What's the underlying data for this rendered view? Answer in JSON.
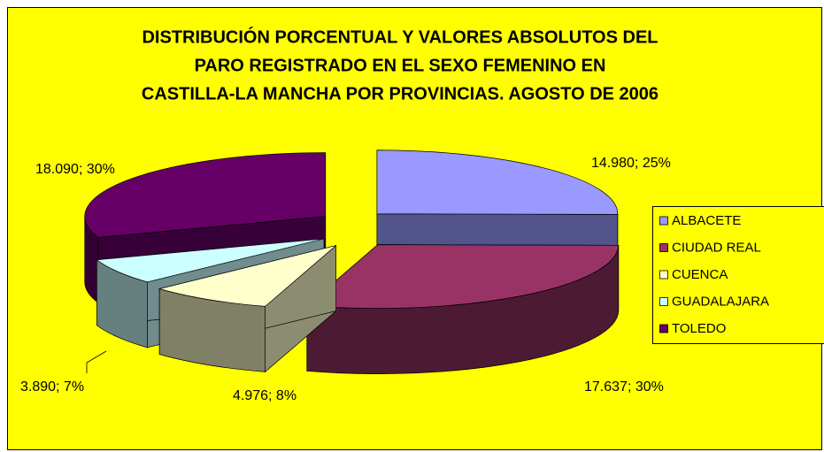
{
  "chart_data": {
    "type": "pie",
    "title": "DISTRIBUCIÓN PORCENTUAL Y VALORES ABSOLUTOS DEL",
    "subtitle": [
      "PARO REGISTRADO EN EL SEXO FEMENINO EN",
      "CASTILLA-LA MANCHA POR PROVINCIAS. AGOSTO DE 2006"
    ],
    "categories": [
      "ALBACETE",
      "CIUDAD REAL",
      "CUENCA",
      "GUADALAJARA",
      "TOLEDO"
    ],
    "values": [
      14980,
      17637,
      4976,
      3890,
      18090
    ],
    "value_labels": [
      "14.980; 25%",
      "17.637; 30%",
      "4.976; 8%",
      "3.890; 7%",
      "18.090; 30%"
    ],
    "colors": [
      "#9999ff",
      "#993366",
      "#ffffcc",
      "#ccffff",
      "#660066"
    ],
    "legend": "right",
    "three_d": true,
    "exploded": true
  }
}
